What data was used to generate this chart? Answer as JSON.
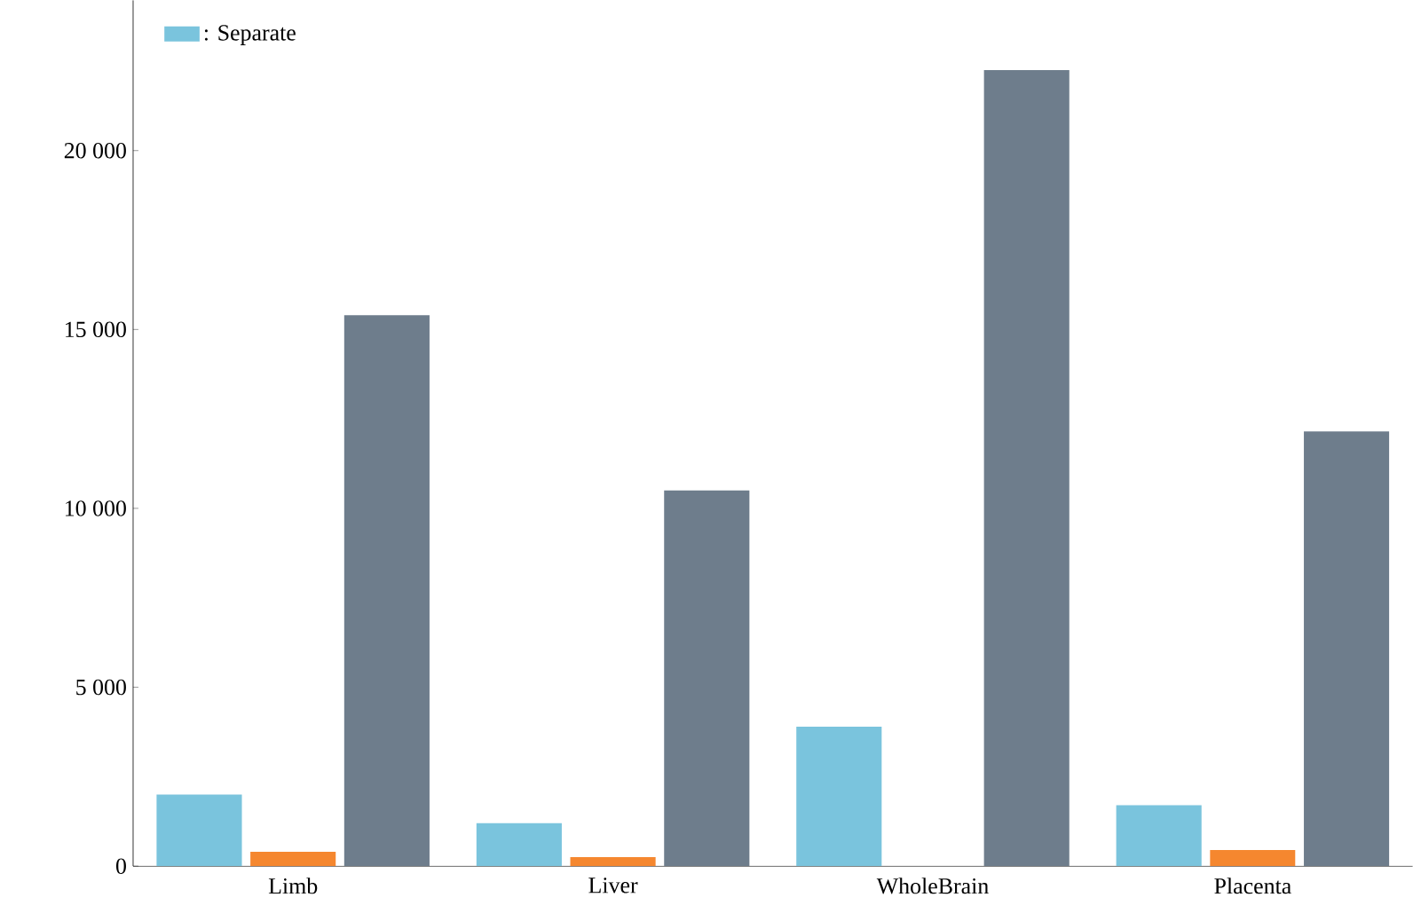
{
  "chart_data": {
    "type": "bar",
    "categories": [
      "Limb",
      "Liver",
      "WholeBrain",
      "Placenta"
    ],
    "series": [
      {
        "name": ": Separate",
        "color": "#7ac4dd",
        "values": [
          2000,
          1200,
          3900,
          1700
        ]
      },
      {
        "color": "#f5872f",
        "values": [
          400,
          250,
          null,
          450
        ]
      },
      {
        "color": "#6e7d8c",
        "values": [
          15400,
          10500,
          22250,
          12150
        ]
      }
    ],
    "ylim": [
      0,
      24200
    ],
    "yticks": [
      0,
      {
        "value": 5000,
        "label": "5 000"
      },
      {
        "value": 10000,
        "label": "10 000"
      },
      {
        "value": 15000,
        "label": "15 000"
      },
      {
        "value": 20000,
        "label": "20 000"
      }
    ],
    "legend": "top left",
    "grid": false
  }
}
